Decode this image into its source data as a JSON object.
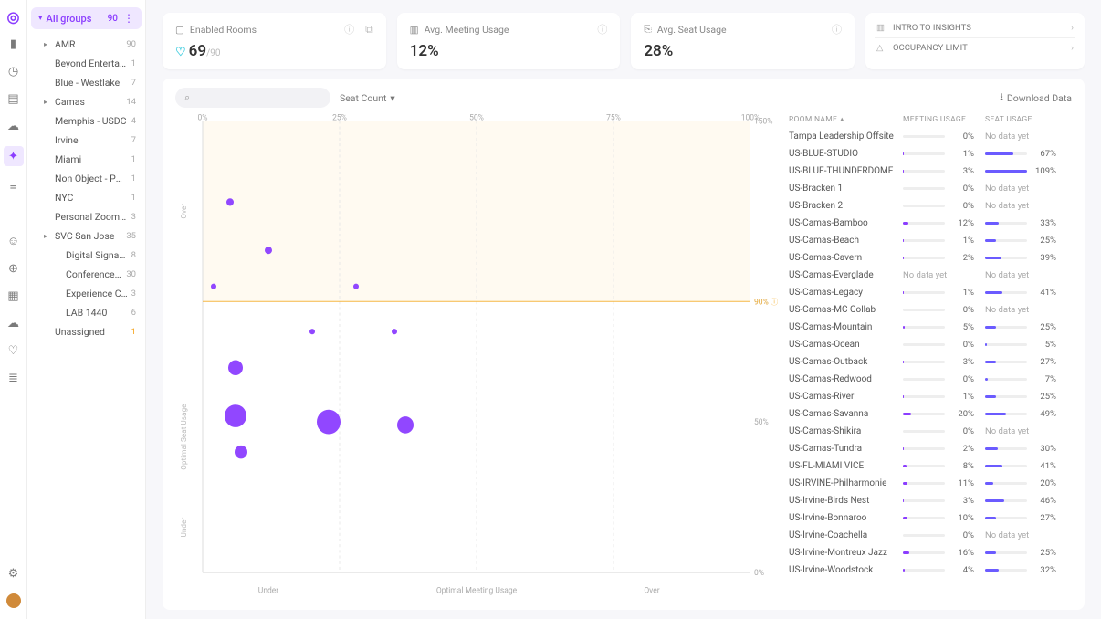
{
  "colors": {
    "accent": "#8b3dff",
    "accent2": "#6b5bff",
    "warning": "#f5b745",
    "shade": "#fff7e8",
    "grid": "#e8e8e8",
    "bg": "#f7f7fa"
  },
  "rail_icons": [
    {
      "name": "brand-icon",
      "glyph": "◎",
      "cls": "brand"
    },
    {
      "name": "dashboard-icon",
      "glyph": "▮"
    },
    {
      "name": "clock-icon",
      "glyph": "◷"
    },
    {
      "name": "book-icon",
      "glyph": "▤"
    },
    {
      "name": "cloud-icon",
      "glyph": "☁"
    },
    {
      "name": "insight-icon",
      "glyph": "✦",
      "cls": "active"
    },
    {
      "name": "settings-rows-icon",
      "glyph": "≡"
    },
    {
      "name": "spacer1",
      "glyph": ""
    },
    {
      "name": "person-icon",
      "glyph": "☺"
    },
    {
      "name": "globe-icon",
      "glyph": "⊕"
    },
    {
      "name": "grid-icon",
      "glyph": "▦"
    },
    {
      "name": "cloud2-icon",
      "glyph": "☁"
    },
    {
      "name": "bulb-icon",
      "glyph": "♡"
    },
    {
      "name": "sliders-icon",
      "glyph": "≣"
    }
  ],
  "sidebar": {
    "group_label": "All groups",
    "group_count": "90",
    "items": [
      {
        "label": "AMR",
        "count": "90",
        "caret": true,
        "level": 1
      },
      {
        "label": "Beyond Entertain...",
        "count": "1",
        "level": 1
      },
      {
        "label": "Blue - Westlake",
        "count": "7",
        "level": 1
      },
      {
        "label": "Camas",
        "count": "14",
        "caret": true,
        "level": 1
      },
      {
        "label": "Memphis - USDC",
        "count": "4",
        "level": 1
      },
      {
        "label": "Irvine",
        "count": "7",
        "level": 1
      },
      {
        "label": "Miami",
        "count": "1",
        "level": 1
      },
      {
        "label": "Non Object - Port...",
        "count": "1",
        "level": 1
      },
      {
        "label": "NYC",
        "count": "1",
        "level": 1
      },
      {
        "label": "Personal ZoomRo...",
        "count": "3",
        "level": 1
      },
      {
        "label": "SVC San Jose",
        "count": "35",
        "caret": true,
        "level": 1
      },
      {
        "label": "Digital Signage",
        "count": "8",
        "level": 2
      },
      {
        "label": "Conference Roo...",
        "count": "30",
        "level": 2
      },
      {
        "label": "Experience Center",
        "count": "3",
        "level": 2
      },
      {
        "label": "LAB 1440",
        "count": "6",
        "level": 2
      },
      {
        "label": "Unassigned",
        "count": "1",
        "level": 1,
        "warn": true
      }
    ]
  },
  "cards": {
    "enabled": {
      "title": "Enabled Rooms",
      "value": "69",
      "sub": "/90"
    },
    "meeting": {
      "title": "Avg. Meeting Usage",
      "value": "12%"
    },
    "seat": {
      "title": "Avg. Seat Usage",
      "value": "28%"
    },
    "insights": [
      {
        "icon": "▥",
        "label": "INTRO TO INSIGHTS"
      },
      {
        "icon": "△",
        "label": "OCCUPANCY LIMIT"
      }
    ]
  },
  "toolbar": {
    "seat_count_label": "Seat Count",
    "download_label": "Download Data"
  },
  "chart": {
    "x_ticks": [
      {
        "p": 0,
        "l": "0%"
      },
      {
        "p": 25,
        "l": "25%"
      },
      {
        "p": 50,
        "l": "50%"
      },
      {
        "p": 75,
        "l": "75%"
      },
      {
        "p": 100,
        "l": "100%"
      }
    ],
    "y_ticks": [
      {
        "p": 0,
        "l": "0%"
      },
      {
        "p": 50,
        "l": "50%"
      },
      {
        "p": 90,
        "l": "90%"
      },
      {
        "p": 150,
        "l": "150%"
      }
    ],
    "threshold_y": 90,
    "threshold_label": "90%",
    "x_zones": [
      {
        "label": "Under",
        "p": 12
      },
      {
        "label": "Optimal Meeting Usage",
        "p": 50,
        "color": "#8b3dff"
      },
      {
        "label": "Over",
        "p": 82
      }
    ],
    "y_zone_label": "Optimal Seat Usage",
    "y_over_label": "Over",
    "y_under_label": "Under",
    "shade_y_from": 90,
    "shade_y_to": 150,
    "bubbles": [
      {
        "x": 5,
        "y": 123,
        "r": 4
      },
      {
        "x": 12,
        "y": 107,
        "r": 4
      },
      {
        "x": 2,
        "y": 95,
        "r": 3
      },
      {
        "x": 28,
        "y": 95,
        "r": 3
      },
      {
        "x": 20,
        "y": 80,
        "r": 3
      },
      {
        "x": 35,
        "y": 80,
        "r": 3
      },
      {
        "x": 6,
        "y": 68,
        "r": 8
      },
      {
        "x": 6,
        "y": 52,
        "r": 12
      },
      {
        "x": 23,
        "y": 50,
        "r": 13
      },
      {
        "x": 37,
        "y": 49,
        "r": 9
      },
      {
        "x": 7,
        "y": 40,
        "r": 7
      }
    ]
  },
  "table": {
    "headers": {
      "room": "ROOM NAME",
      "meeting": "MEETING USAGE",
      "seat": "SEAT USAGE"
    },
    "rows": [
      {
        "room": "Tampa Leadership Offsite",
        "meeting": 0,
        "seat": null
      },
      {
        "room": "US-BLUE-STUDIO",
        "meeting": 1,
        "seat": 67
      },
      {
        "room": "US-BLUE-THUNDERDOME",
        "meeting": 3,
        "seat": 109
      },
      {
        "room": "US-Bracken 1",
        "meeting": 0,
        "seat": null
      },
      {
        "room": "US-Bracken 2",
        "meeting": 0,
        "seat": null
      },
      {
        "room": "US-Camas-Bamboo",
        "meeting": 12,
        "seat": 33
      },
      {
        "room": "US-Camas-Beach",
        "meeting": 1,
        "seat": 25
      },
      {
        "room": "US-Camas-Cavern",
        "meeting": 2,
        "seat": 39
      },
      {
        "room": "US-Camas-Everglade",
        "meeting": null,
        "seat": null
      },
      {
        "room": "US-Camas-Legacy",
        "meeting": 1,
        "seat": 41
      },
      {
        "room": "US-Camas-MC Collab",
        "meeting": 0,
        "seat": null
      },
      {
        "room": "US-Camas-Mountain",
        "meeting": 5,
        "seat": 25
      },
      {
        "room": "US-Camas-Ocean",
        "meeting": 0,
        "seat": 5
      },
      {
        "room": "US-Camas-Outback",
        "meeting": 3,
        "seat": 27
      },
      {
        "room": "US-Camas-Redwood",
        "meeting": 0,
        "seat": 7
      },
      {
        "room": "US-Camas-River",
        "meeting": 1,
        "seat": 25
      },
      {
        "room": "US-Camas-Savanna",
        "meeting": 20,
        "seat": 49
      },
      {
        "room": "US-Camas-Shikira",
        "meeting": 0,
        "seat": null
      },
      {
        "room": "US-Camas-Tundra",
        "meeting": 2,
        "seat": 30
      },
      {
        "room": "US-FL-MIAMI VICE",
        "meeting": 8,
        "seat": 41
      },
      {
        "room": "US-IRVINE-Philharmonie",
        "meeting": 11,
        "seat": 20
      },
      {
        "room": "US-Irvine-Birds Nest",
        "meeting": 3,
        "seat": 46
      },
      {
        "room": "US-Irvine-Bonnaroo",
        "meeting": 10,
        "seat": 27
      },
      {
        "room": "US-Irvine-Coachella",
        "meeting": 0,
        "seat": null
      },
      {
        "room": "US-Irvine-Montreux Jazz",
        "meeting": 16,
        "seat": 25
      },
      {
        "room": "US-Irvine-Woodstock",
        "meeting": 4,
        "seat": 32
      }
    ],
    "nodata_label": "No data yet"
  }
}
